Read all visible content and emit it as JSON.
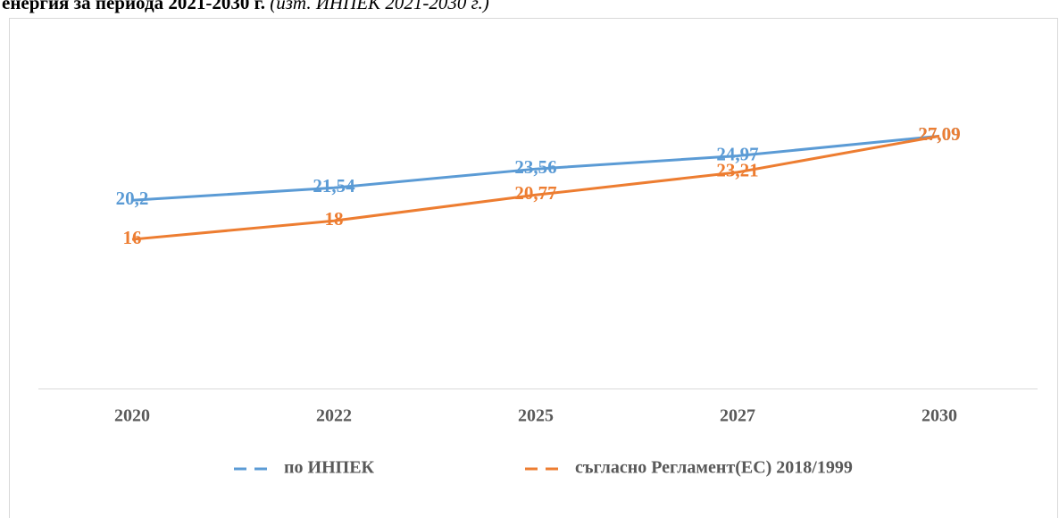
{
  "chart_data": {
    "type": "line",
    "title": "енергия за периода 2021-2030 г.",
    "source": "(изт. ИНПЕК 2021-2030 г.)",
    "categories": [
      "2020",
      "2022",
      "2025",
      "2027",
      "2030"
    ],
    "series": [
      {
        "name": "по ИНПЕК",
        "color": "#5b9bd5",
        "values": [
          20.2,
          21.54,
          23.56,
          24.97,
          27.09
        ],
        "value_labels": [
          "20,2",
          "21,54",
          "23,56",
          "24,97",
          "27,09"
        ]
      },
      {
        "name": "съгласно Регламент(ЕС) 2018/1999",
        "color": "#ed7d31",
        "values": [
          16,
          18,
          20.77,
          23.21,
          27.09
        ],
        "value_labels": [
          "16",
          "18",
          "20,77",
          "23,21",
          "27,09"
        ]
      }
    ],
    "ylim": [
      0,
      30
    ],
    "legend": "bottom"
  }
}
